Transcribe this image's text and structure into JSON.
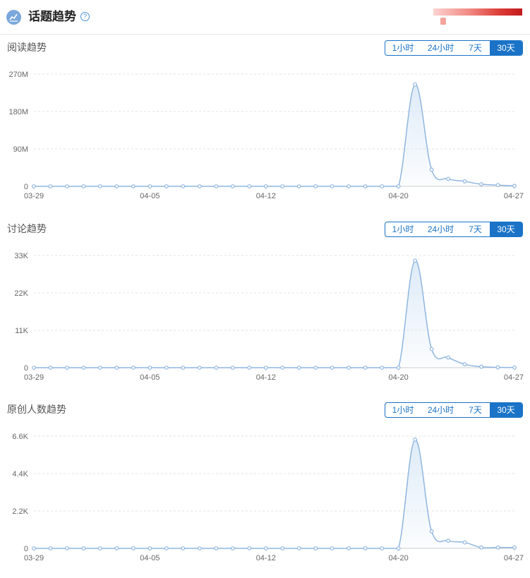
{
  "header": {
    "title": "话题趋势",
    "help_icon": "question-circle-icon",
    "title_icon": "trend-chart-icon",
    "help_glyph": "?"
  },
  "colors": {
    "accent": "#1a73c7",
    "line": "#8fb6e0",
    "fill": "#dbe9f7",
    "grid": "#d9d9d9"
  },
  "range_options": [
    "1小时",
    "24小时",
    "7天",
    "30天"
  ],
  "active_range": "30天",
  "x_tick_labels": [
    "03-29",
    "04-05",
    "04-12",
    "04-20",
    "04-27"
  ],
  "chart_data": [
    {
      "type": "area",
      "title": "阅读趋势",
      "x": [
        "03-29",
        "03-30",
        "03-31",
        "04-01",
        "04-02",
        "04-03",
        "04-04",
        "04-05",
        "04-06",
        "04-07",
        "04-08",
        "04-09",
        "04-10",
        "04-11",
        "04-12",
        "04-13",
        "04-14",
        "04-15",
        "04-16",
        "04-17",
        "04-18",
        "04-19",
        "04-20",
        "04-21",
        "04-22",
        "04-23",
        "04-24",
        "04-25",
        "04-26",
        "04-27"
      ],
      "values": [
        0,
        0,
        0,
        0,
        0,
        0,
        0,
        0,
        0,
        0,
        0,
        0,
        0,
        0,
        0,
        0,
        0,
        0,
        0,
        0,
        0,
        0,
        0,
        245000000,
        40000000,
        18000000,
        12000000,
        5000000,
        3000000,
        1000000
      ],
      "y_ticks": [
        "0",
        "90M",
        "180M",
        "270M"
      ],
      "ylim": [
        0,
        270000000
      ],
      "grid": true
    },
    {
      "type": "area",
      "title": "讨论趋势",
      "x": [
        "03-29",
        "03-30",
        "03-31",
        "04-01",
        "04-02",
        "04-03",
        "04-04",
        "04-05",
        "04-06",
        "04-07",
        "04-08",
        "04-09",
        "04-10",
        "04-11",
        "04-12",
        "04-13",
        "04-14",
        "04-15",
        "04-16",
        "04-17",
        "04-18",
        "04-19",
        "04-20",
        "04-21",
        "04-22",
        "04-23",
        "04-24",
        "04-25",
        "04-26",
        "04-27"
      ],
      "values": [
        0,
        0,
        0,
        0,
        0,
        0,
        0,
        0,
        0,
        0,
        0,
        0,
        0,
        0,
        0,
        0,
        0,
        0,
        0,
        0,
        0,
        0,
        0,
        31500,
        5500,
        3000,
        1000,
        300,
        100,
        50
      ],
      "y_ticks": [
        "0",
        "11K",
        "22K",
        "33K"
      ],
      "ylim": [
        0,
        33000
      ],
      "grid": true
    },
    {
      "type": "area",
      "title": "原创人数趋势",
      "x": [
        "03-29",
        "03-30",
        "03-31",
        "04-01",
        "04-02",
        "04-03",
        "04-04",
        "04-05",
        "04-06",
        "04-07",
        "04-08",
        "04-09",
        "04-10",
        "04-11",
        "04-12",
        "04-13",
        "04-14",
        "04-15",
        "04-16",
        "04-17",
        "04-18",
        "04-19",
        "04-20",
        "04-21",
        "04-22",
        "04-23",
        "04-24",
        "04-25",
        "04-26",
        "04-27"
      ],
      "values": [
        0,
        0,
        0,
        0,
        0,
        0,
        0,
        0,
        0,
        0,
        0,
        0,
        0,
        0,
        0,
        0,
        0,
        0,
        0,
        0,
        0,
        0,
        0,
        6400,
        1000,
        450,
        350,
        50,
        50,
        50
      ],
      "y_ticks": [
        "0",
        "2.2K",
        "4.4K",
        "6.6K"
      ],
      "ylim": [
        0,
        6600
      ],
      "grid": true
    }
  ]
}
